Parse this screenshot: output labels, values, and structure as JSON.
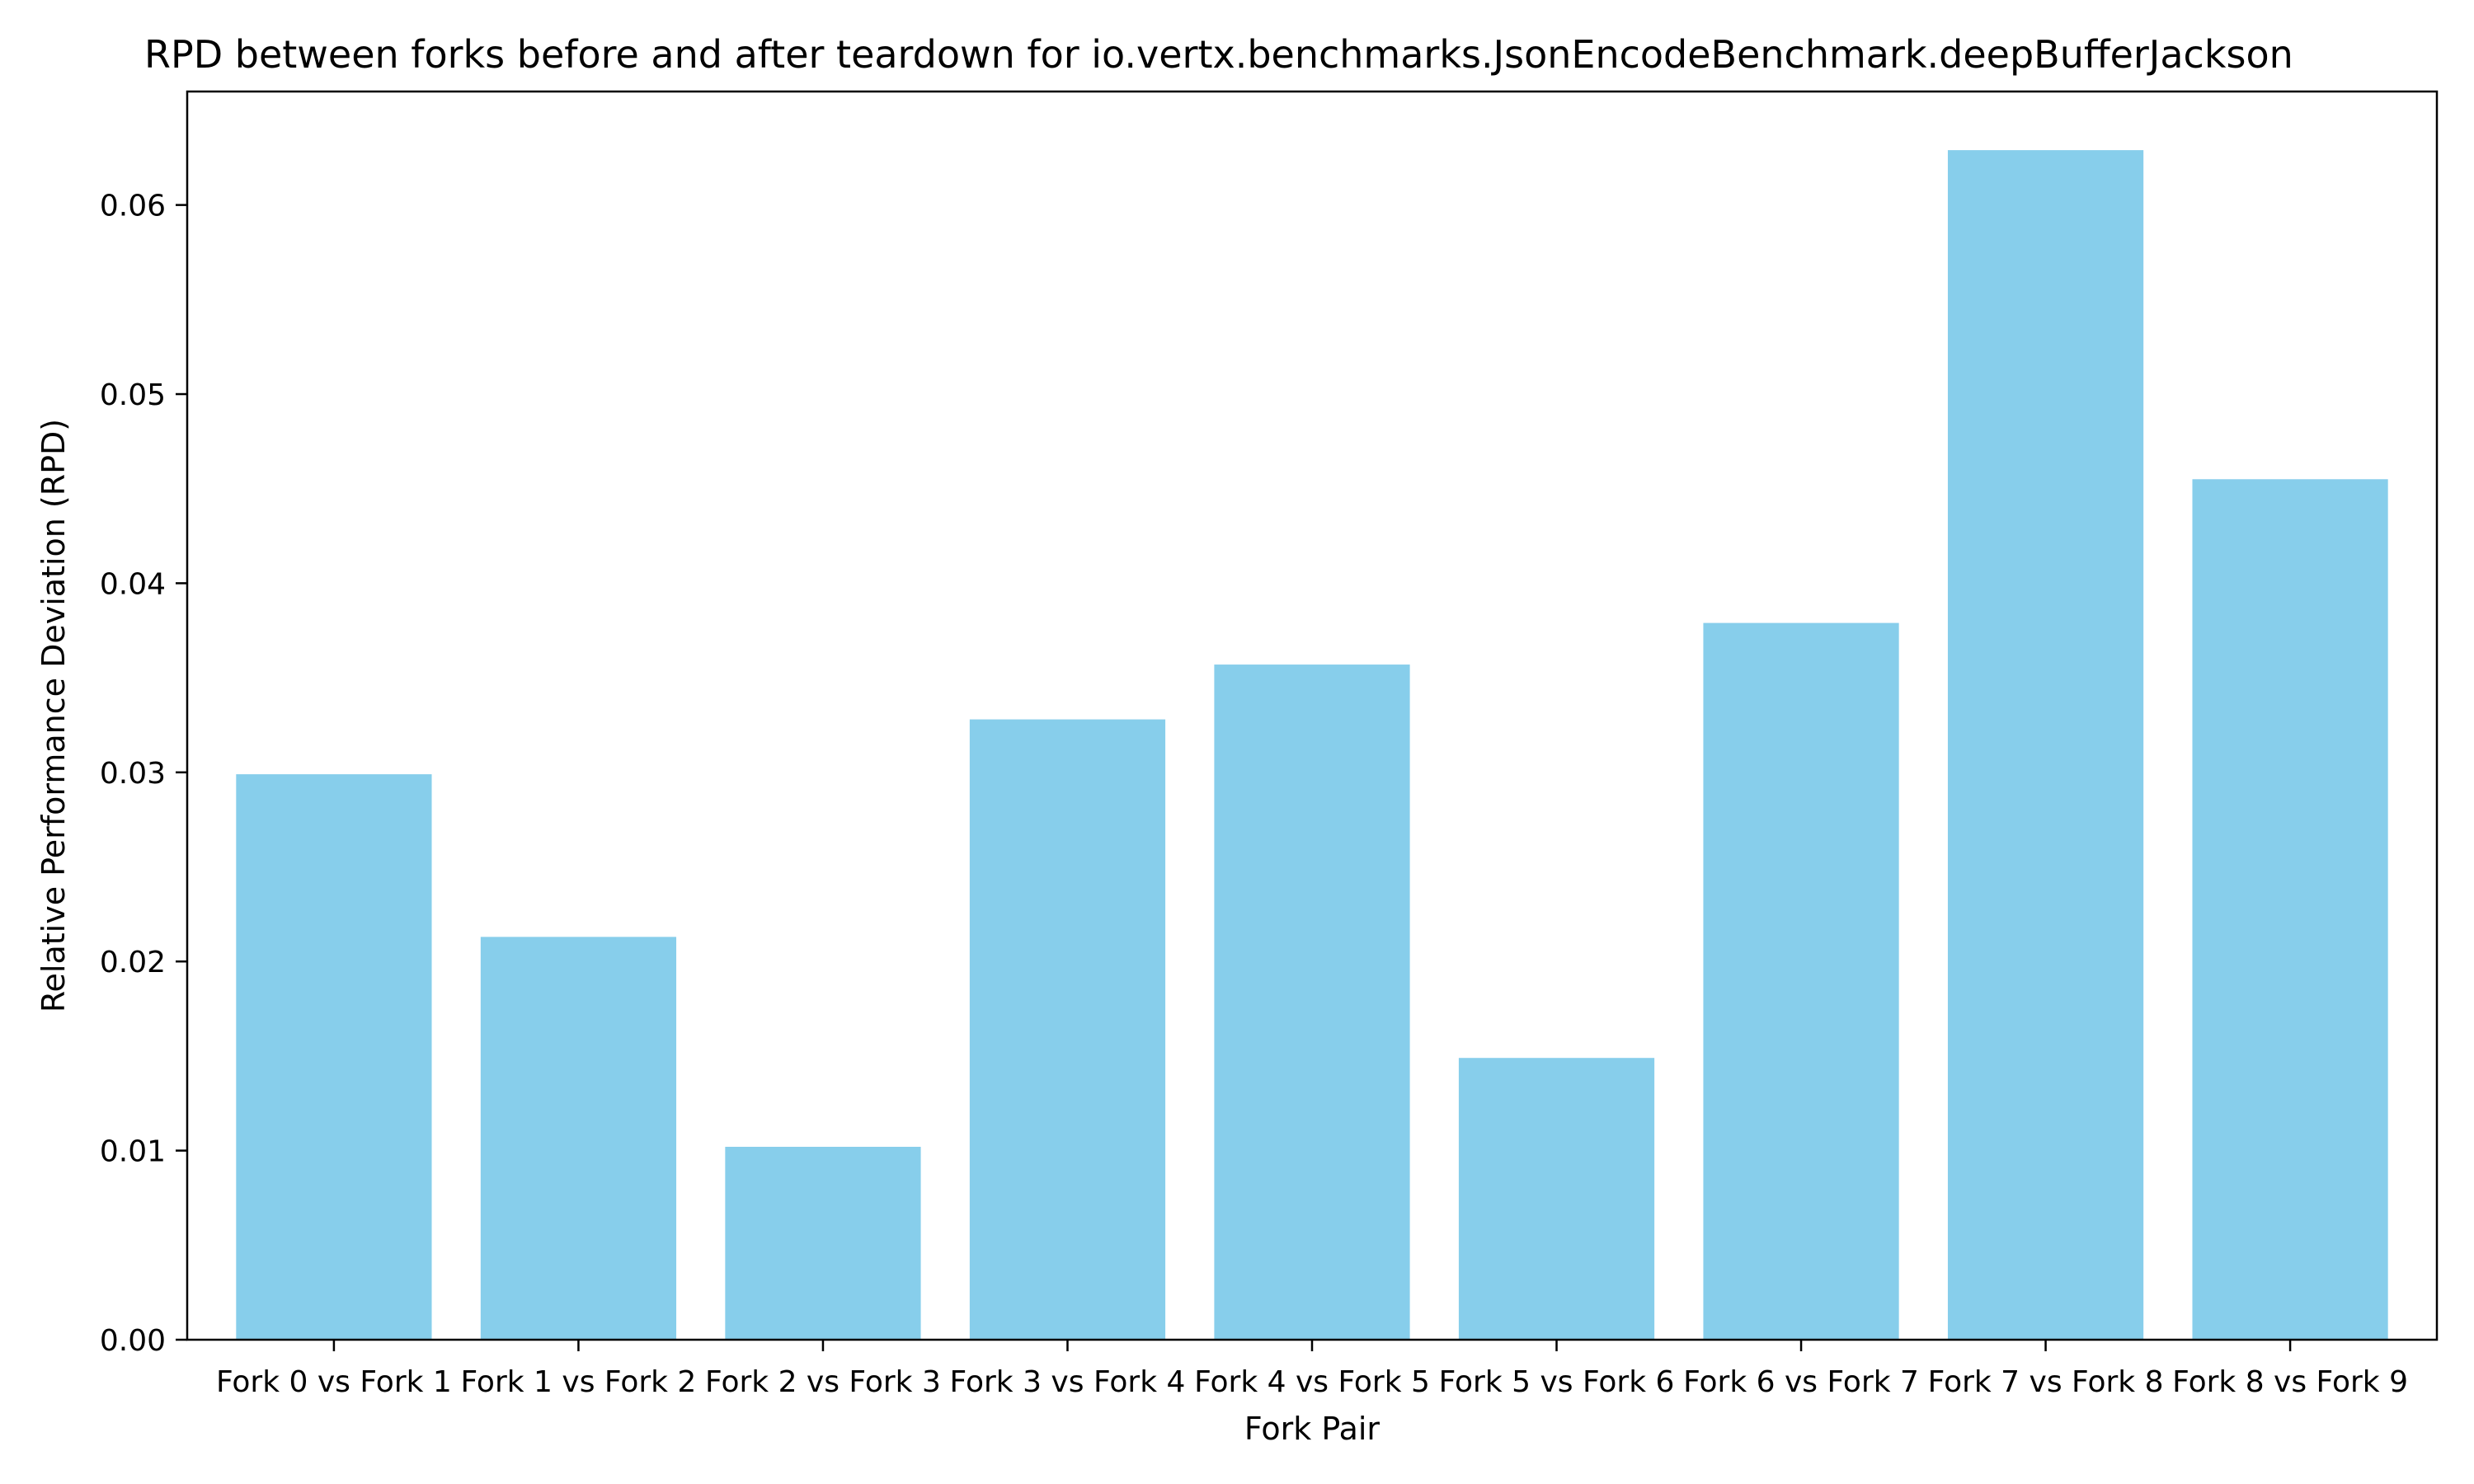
{
  "chart_data": {
    "type": "bar",
    "title": "RPD between forks before and after teardown for io.vertx.benchmarks.JsonEncodeBenchmark.deepBufferJackson",
    "xlabel": "Fork Pair",
    "ylabel": "Relative Performance Deviation (RPD)",
    "categories": [
      "Fork 0 vs Fork 1",
      "Fork 1 vs Fork 2",
      "Fork 2 vs Fork 3",
      "Fork 3 vs Fork 4",
      "Fork 4 vs Fork 5",
      "Fork 5 vs Fork 6",
      "Fork 6 vs Fork 7",
      "Fork 7 vs Fork 8",
      "Fork 8 vs Fork 9"
    ],
    "values": [
      0.0299,
      0.0213,
      0.0102,
      0.0328,
      0.0357,
      0.0149,
      0.0379,
      0.0629,
      0.0455
    ],
    "yticks": [
      "0.00",
      "0.01",
      "0.02",
      "0.03",
      "0.04",
      "0.05",
      "0.06"
    ],
    "ylim": [
      0,
      0.066
    ],
    "grid": false,
    "bar_color": "#87CEEB"
  }
}
